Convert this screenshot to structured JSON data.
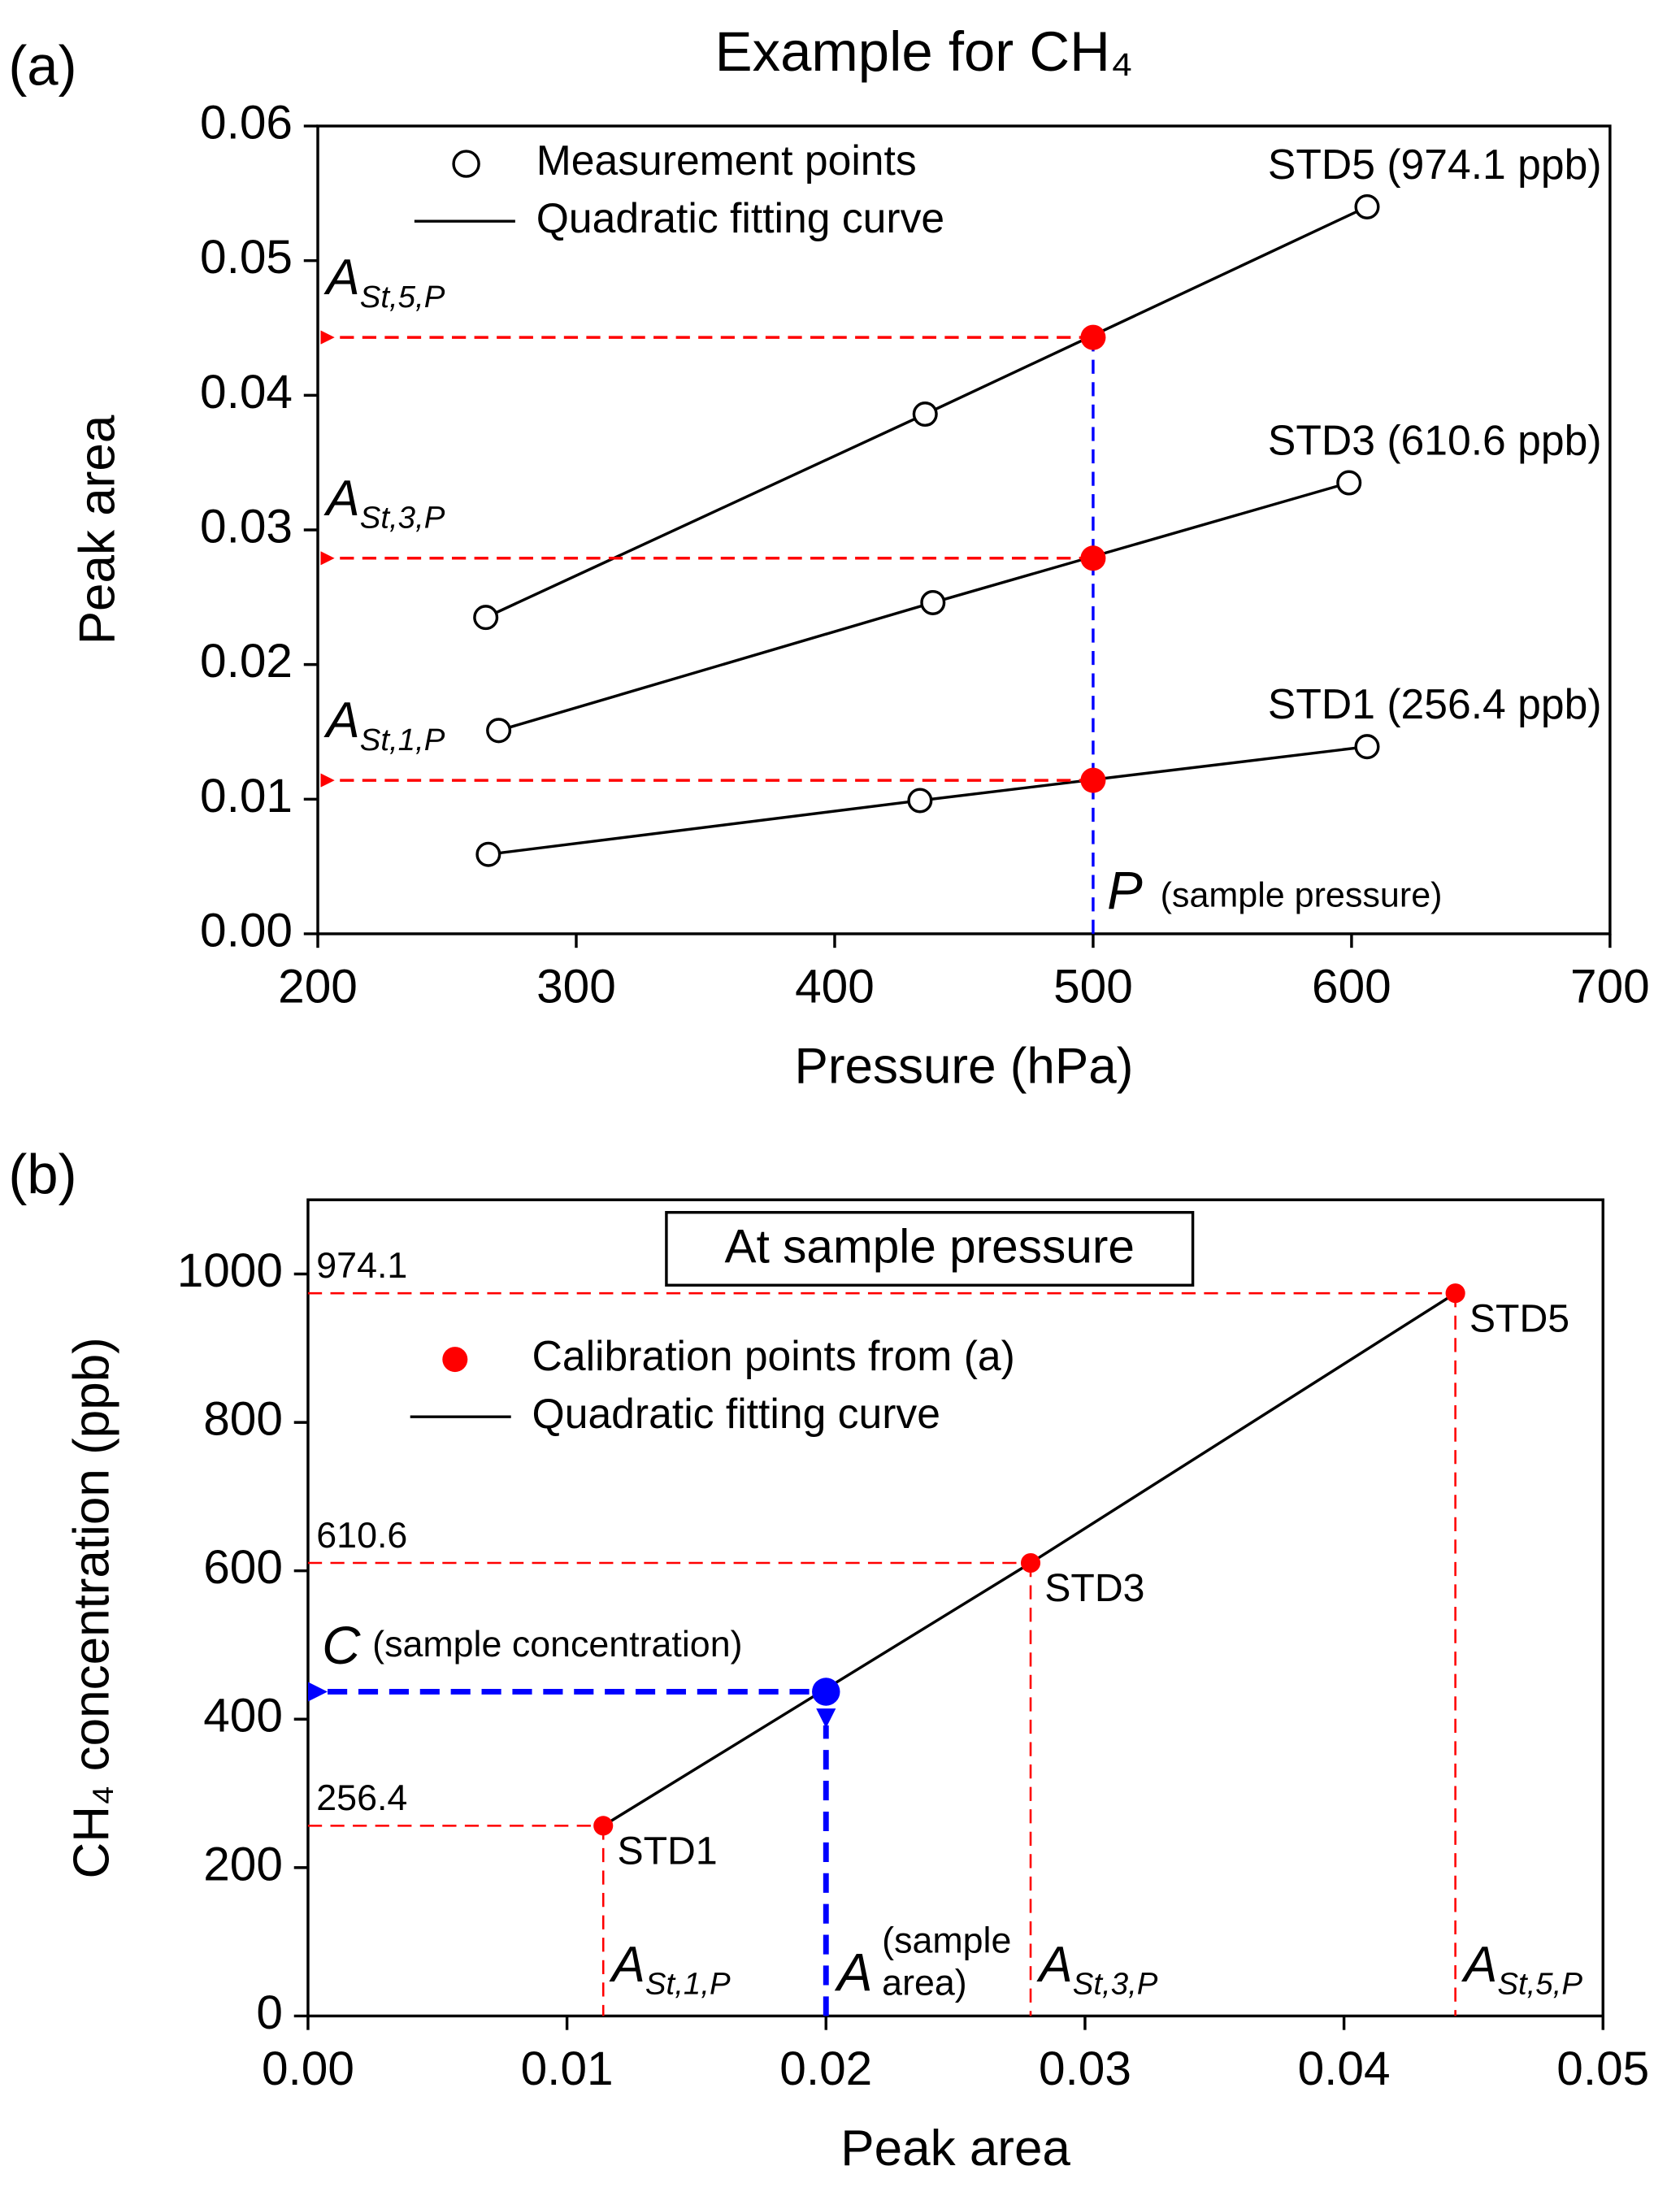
{
  "chart_data": [
    {
      "type": "line",
      "panel": "(a)",
      "title": "Example for CH₄",
      "x_label": "Pressure (hPa)",
      "y_label": "Peak area",
      "xlim": [
        200,
        700
      ],
      "xticks": [
        200,
        300,
        400,
        500,
        600,
        700
      ],
      "ylim": [
        0,
        0.06
      ],
      "yticks": [
        {
          "value": 0,
          "label": "0.00"
        },
        0.01,
        0.02,
        0.03,
        0.04,
        0.05,
        0.06
      ],
      "legend": {
        "marker_label": "Measurement points",
        "line_label": "Quadratic fitting curve"
      },
      "series": [
        {
          "name": "STD5 (974.1 ppb)",
          "color": "#000000",
          "x": [
            265,
            435,
            606
          ],
          "values": [
            0.0235,
            0.0386,
            0.054
          ]
        },
        {
          "name": "STD3 (610.6 ppb)",
          "color": "#000000",
          "x": [
            270,
            438,
            599
          ],
          "values": [
            0.0151,
            0.0246,
            0.0335
          ]
        },
        {
          "name": "STD1 (256.4 ppb)",
          "color": "#000000",
          "x": [
            266,
            433,
            606
          ],
          "values": [
            0.0059,
            0.0099,
            0.0139
          ]
        }
      ],
      "interpolated": {
        "color": "#ff0000",
        "x": 500,
        "values": [
          0.0443,
          0.0279,
          0.0114
        ],
        "labels": [
          {
            "main": "A",
            "sub": "St,5,P"
          },
          {
            "main": "A",
            "sub": "St,3,P"
          },
          {
            "main": "A",
            "sub": "St,1,P"
          }
        ]
      },
      "sample": {
        "color": "#0000ff",
        "x": 500,
        "label": "P",
        "note": "(sample pressure)"
      }
    },
    {
      "type": "line",
      "panel": "(b)",
      "box_title": "At sample pressure",
      "x_label": "Peak area",
      "y_label": "CH₄ concentration (ppb)",
      "xlim": [
        0,
        0.05
      ],
      "xticks": [
        {
          "value": 0,
          "label": "0.00"
        },
        0.01,
        0.02,
        0.03,
        0.04,
        0.05
      ],
      "ylim": [
        0,
        1100
      ],
      "yticks": [
        0,
        200,
        400,
        600,
        800,
        1000
      ],
      "series": [
        {
          "name": "Calibration points from (a)",
          "color": "#ff0000",
          "x": [
            0.0114,
            0.0279,
            0.0443
          ],
          "values": [
            256.4,
            610.6,
            974.1
          ],
          "point_labels": [
            "STD1",
            "STD3",
            "STD5"
          ],
          "x_labels": [
            {
              "main": "A",
              "sub": "St,1,P"
            },
            {
              "main": "A",
              "sub": "St,3,P"
            },
            {
              "main": "A",
              "sub": "St,5,P"
            }
          ]
        }
      ],
      "fit_label": "Quadratic fitting curve",
      "sample": {
        "color": "#0000ff",
        "x": 0.02,
        "value": 437,
        "x_label": {
          "main": "A",
          "note": [
            "(sample",
            "area)"
          ]
        },
        "y_label": {
          "main": "C",
          "note": "(sample concentration)"
        }
      }
    }
  ]
}
